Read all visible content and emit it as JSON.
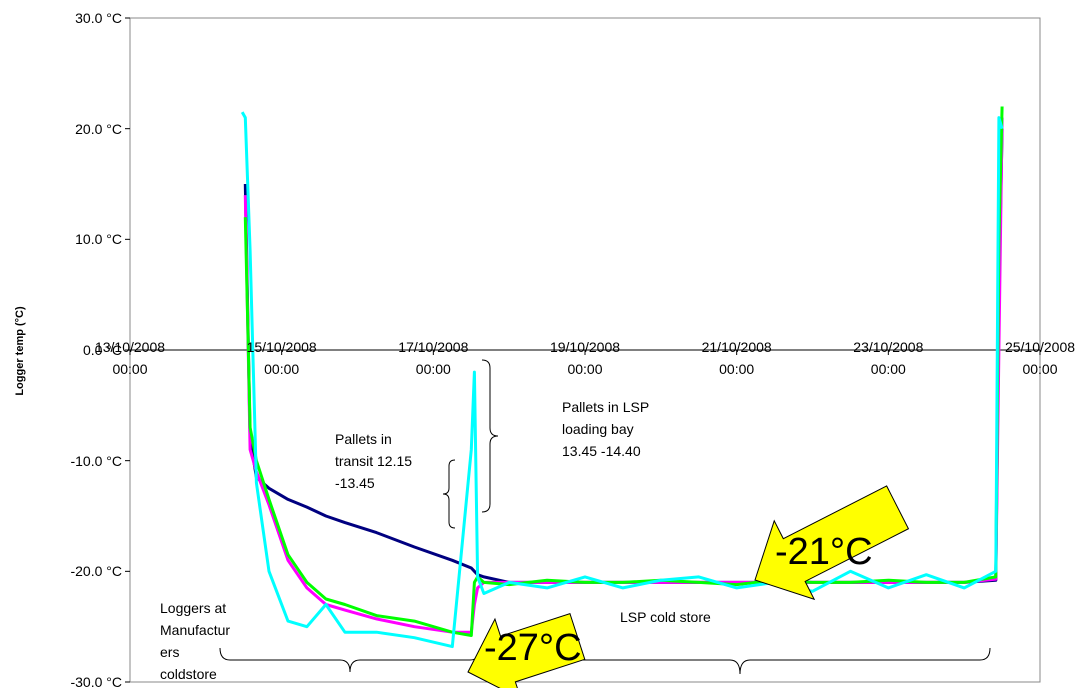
{
  "chart_data": {
    "type": "line",
    "y_label": "Logger temp (°C)",
    "x": [
      "2008-10-14 11:30",
      "2008-10-14 12:30",
      "2008-10-14 14:00",
      "2008-10-14 16:00",
      "2008-10-14 20:00",
      "2008-10-15 02:00",
      "2008-10-15 08:00",
      "2008-10-15 14:00",
      "2008-10-15 20:00",
      "2008-10-16 06:00",
      "2008-10-16 18:00",
      "2008-10-17 06:00",
      "2008-10-17 12:00",
      "2008-10-17 13:00",
      "2008-10-17 14:00",
      "2008-10-17 16:00",
      "2008-10-18 00:00",
      "2008-10-18 12:00",
      "2008-10-19 00:00",
      "2008-10-19 12:00",
      "2008-10-20 00:00",
      "2008-10-20 12:00",
      "2008-10-21 00:00",
      "2008-10-21 12:00",
      "2008-10-22 00:00",
      "2008-10-22 12:00",
      "2008-10-23 00:00",
      "2008-10-23 12:00",
      "2008-10-24 00:00",
      "2008-10-24 10:00",
      "2008-10-24 11:00",
      "2008-10-24 12:00"
    ],
    "series": [
      {
        "color": "#000080",
        "values": [
          null,
          15,
          -8,
          -11.5,
          -12.5,
          -13.5,
          -14.2,
          -15,
          -15.6,
          -16.5,
          -17.8,
          -19,
          -19.7,
          -20,
          -20.3,
          -20.5,
          -21,
          -21,
          -21,
          -21,
          -21,
          -21,
          -21,
          -21,
          -21,
          -21,
          -21,
          -21,
          -21,
          -20.8,
          5,
          20
        ]
      },
      {
        "color": "#ff00ff",
        "values": [
          null,
          14,
          -9,
          -11,
          -14,
          -19,
          -21.5,
          -23,
          -23.5,
          -24.3,
          -25,
          -25.5,
          -25.5,
          -23,
          -21.5,
          -21,
          -21,
          -21,
          -21,
          -21,
          -21,
          -21,
          -21,
          -21,
          -21,
          -21,
          -21,
          -21,
          -21,
          -20.7,
          0,
          21
        ]
      },
      {
        "color": "#00ff00",
        "values": [
          null,
          12,
          -7,
          -10,
          -13.5,
          -18.5,
          -21,
          -22.5,
          -23,
          -24,
          -24.5,
          -25.5,
          -25.8,
          -21,
          -20.5,
          -21,
          -21.2,
          -20.8,
          -21,
          -21,
          -20.8,
          -21,
          -21.2,
          -20.8,
          -21,
          -21,
          -20.8,
          -21,
          -21,
          -20.5,
          10,
          22
        ]
      },
      {
        "color": "#00ffff",
        "values": [
          21.5,
          21,
          9,
          -12,
          -20,
          -24.5,
          -25,
          -23,
          -25.5,
          -25.5,
          -26,
          -26.8,
          -9,
          -2,
          -20.5,
          -22,
          -21,
          -21.5,
          -20.5,
          -21.5,
          -20.8,
          -20.5,
          -21.5,
          -21,
          -21.8,
          -20,
          -21.5,
          -20.3,
          -21.5,
          -20,
          21,
          20
        ]
      }
    ],
    "xlim": [
      "2008-10-13 00:00",
      "2008-10-25 00:00"
    ],
    "xticks": [
      {
        "value": "2008-10-13 00:00",
        "label": "13/10/2008\n00:00"
      },
      {
        "value": "2008-10-15 00:00",
        "label": "15/10/2008\n00:00"
      },
      {
        "value": "2008-10-17 00:00",
        "label": "17/10/2008\n00:00"
      },
      {
        "value": "2008-10-19 00:00",
        "label": "19/10/2008\n00:00"
      },
      {
        "value": "2008-10-21 00:00",
        "label": "21/10/2008\n00:00"
      },
      {
        "value": "2008-10-23 00:00",
        "label": "23/10/2008\n00:00"
      },
      {
        "value": "2008-10-25 00:00",
        "label": "25/10/2008\n00:00"
      }
    ],
    "ylim": [
      -30,
      30
    ],
    "yticks": [
      {
        "value": -30,
        "label": "-30.0 °C"
      },
      {
        "value": -20,
        "label": "-20.0 °C"
      },
      {
        "value": -10,
        "label": "-10.0 °C"
      },
      {
        "value": 0,
        "label": "0.0 °C"
      },
      {
        "value": 10,
        "label": "10.0 °C"
      },
      {
        "value": 20,
        "label": "20.0 °C"
      },
      {
        "value": 30,
        "label": "30.0 °C"
      }
    ],
    "annotations": [
      "Pallets in\ntransit 12.15\n-13.45",
      "Pallets in LSP\nloading bay\n13.45 -14.40",
      "Loggers at\nManufactur\ners\ncoldstore",
      "LSP cold store",
      "-27°C",
      "-21°C"
    ]
  }
}
